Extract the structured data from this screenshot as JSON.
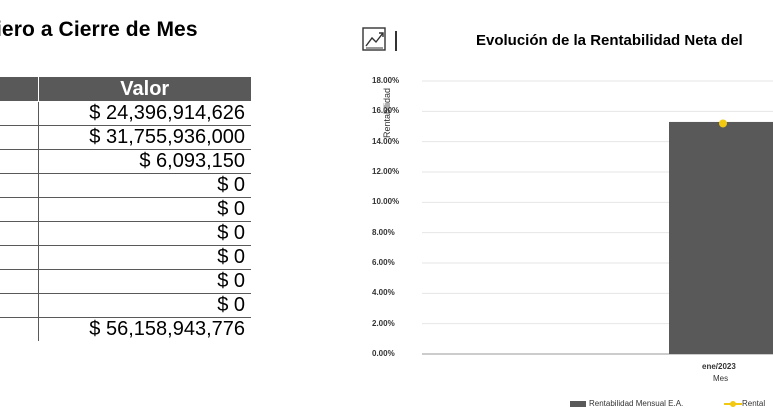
{
  "left_panel": {
    "title": "iero a Cierre de Mes",
    "table": {
      "header_value": "Valor",
      "rows": [
        "$ 24,396,914,626",
        "$ 31,755,936,000",
        "$ 6,093,150",
        "$ 0",
        "$ 0",
        "$ 0",
        "$ 0",
        "$ 0",
        "$ 0",
        "$ 56,158,943,776"
      ]
    }
  },
  "right_panel": {
    "icon": "trend-chart-icon",
    "chart_title": "Evolución de la Rentabilidad Neta del",
    "y_axis_label": "Rentabilidad",
    "x_axis_label": "Mes",
    "colors": {
      "bar": "#595959",
      "line": "#f2c811",
      "grid": "#e6e6e6"
    }
  },
  "chart_data": {
    "type": "bar",
    "title": "Evolución de la Rentabilidad Neta del",
    "xlabel": "Mes",
    "ylabel": "Rentabilidad",
    "ylim": [
      0,
      18
    ],
    "y_ticks": [
      "0.00%",
      "2.00%",
      "4.00%",
      "6.00%",
      "8.00%",
      "10.00%",
      "12.00%",
      "14.00%",
      "16.00%",
      "18.00%"
    ],
    "categories": [
      "ene/2023"
    ],
    "series": [
      {
        "name": "Rentabilidad Mensual E.A.",
        "kind": "bar",
        "values": [
          15.3
        ]
      },
      {
        "name": "Rental",
        "kind": "line",
        "values": [
          15.2
        ]
      }
    ],
    "legend_position": "bottom-right"
  }
}
